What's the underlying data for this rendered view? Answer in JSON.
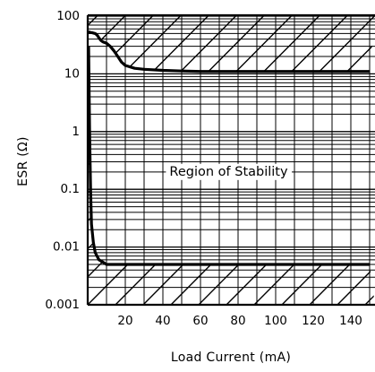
{
  "chart_data": {
    "type": "line",
    "title": "",
    "xlabel": "Load Current (mA)",
    "ylabel": "ESR (Ω)",
    "x_scale": "linear",
    "y_scale": "log",
    "xlim": [
      0,
      150
    ],
    "ylim": [
      0.001,
      100
    ],
    "x_ticks": [
      {
        "value": 20,
        "label": "20"
      },
      {
        "value": 40,
        "label": "40"
      },
      {
        "value": 60,
        "label": "60"
      },
      {
        "value": 80,
        "label": "80"
      },
      {
        "value": 100,
        "label": "100"
      },
      {
        "value": 120,
        "label": "120"
      },
      {
        "value": 140,
        "label": "140"
      }
    ],
    "y_ticks": [
      {
        "value": 100,
        "label": "100"
      },
      {
        "value": 10,
        "label": "10"
      },
      {
        "value": 1,
        "label": "1"
      },
      {
        "value": 0.1,
        "label": "0.1"
      },
      {
        "value": 0.01,
        "label": "0.01"
      },
      {
        "value": 0.001,
        "label": "0.001"
      }
    ],
    "grid": true,
    "annotations": [
      {
        "text": "Region of Stability",
        "x": 75,
        "y": 0.2
      }
    ],
    "series": [
      {
        "role": "upper-boundary",
        "x": [
          0.5,
          1,
          2,
          4,
          5,
          6,
          7,
          8,
          10,
          12,
          14,
          16,
          18,
          20,
          25,
          30,
          40,
          50,
          60,
          80,
          100,
          120,
          150
        ],
        "y": [
          55,
          52,
          52,
          50,
          47,
          42,
          38,
          36,
          34,
          30,
          25,
          20,
          16,
          14,
          12.5,
          12,
          11.5,
          11.2,
          11,
          11,
          11,
          11,
          11
        ]
      },
      {
        "role": "lower-boundary",
        "x": [
          0.5,
          1,
          1.5,
          2,
          3,
          4,
          6,
          8,
          10,
          15,
          20,
          40,
          60,
          80,
          100,
          120,
          150
        ],
        "y": [
          30,
          1,
          0.1,
          0.025,
          0.012,
          0.008,
          0.006,
          0.0055,
          0.005,
          0.005,
          0.005,
          0.005,
          0.005,
          0.005,
          0.005,
          0.005,
          0.005
        ]
      }
    ]
  }
}
